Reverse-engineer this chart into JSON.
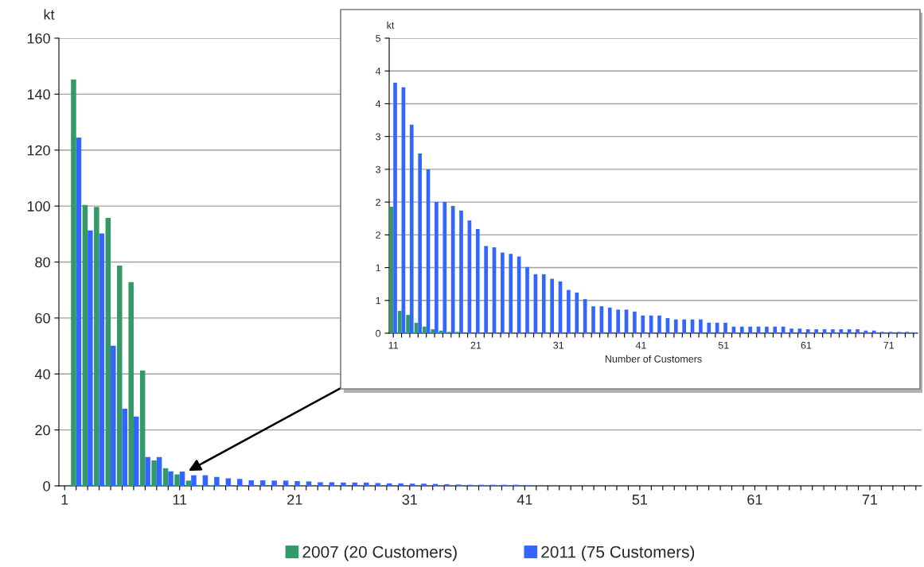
{
  "chart_data": [
    {
      "type": "bar",
      "ylabel": "kt",
      "categories": [
        "1",
        null,
        null,
        null,
        null,
        null,
        null,
        null,
        null,
        null,
        "11",
        null,
        null,
        null,
        null,
        null,
        null,
        null,
        null,
        null,
        "21",
        null,
        null,
        null,
        null,
        null,
        null,
        null,
        null,
        null,
        "31",
        null,
        null,
        null,
        null,
        null,
        null,
        null,
        null,
        null,
        "41",
        null,
        null,
        null,
        null,
        null,
        null,
        null,
        null,
        null,
        "51",
        null,
        null,
        null,
        null,
        null,
        null,
        null,
        null,
        null,
        "61",
        null,
        null,
        null,
        null,
        null,
        null,
        null,
        null,
        null,
        "71",
        null,
        null,
        null,
        null
      ],
      "series": [
        {
          "name": "2007 (20 Customers)",
          "color": "#339966",
          "values": [
            null,
            145.2,
            100.4,
            99.7,
            95.8,
            78.7,
            72.8,
            41.2,
            9.1,
            6.3,
            4.1,
            1.9,
            0.3,
            0.3,
            0.2,
            null,
            null,
            null,
            null,
            null,
            null,
            null,
            null,
            null,
            null,
            null,
            null,
            null,
            null,
            null,
            null,
            null,
            null,
            null,
            null,
            null,
            null,
            null,
            null,
            null,
            null,
            null,
            null,
            null,
            null,
            null,
            null,
            null,
            null,
            null,
            null,
            null,
            null,
            null,
            null,
            null,
            null,
            null,
            null,
            null,
            null,
            null,
            null,
            null,
            null,
            null,
            null,
            null,
            null,
            null,
            null,
            null,
            null,
            null,
            null
          ]
        },
        {
          "name": "2011 (75 Customers)",
          "color": "#3366ff",
          "values": [
            null,
            124.5,
            91.3,
            90.2,
            50.1,
            27.6,
            24.8,
            10.3,
            10.3,
            5.2,
            5.1,
            3.8,
            3.8,
            3.2,
            2.7,
            2.5,
            2.0,
            2.0,
            1.9,
            1.9,
            1.7,
            1.6,
            1.3,
            1.3,
            1.2,
            1.2,
            1.2,
            1.0,
            0.9,
            0.9,
            0.8,
            0.8,
            0.7,
            0.6,
            0.5,
            0.4,
            0.4,
            0.4,
            0.4,
            0.4,
            0.3,
            null,
            null,
            null,
            null,
            null,
            null,
            null,
            null,
            null,
            null,
            null,
            null,
            null,
            null,
            null,
            null,
            null,
            null,
            null,
            null,
            null,
            null,
            null,
            null,
            null,
            null,
            null,
            null,
            null,
            null,
            null,
            null,
            null,
            null
          ]
        }
      ],
      "ylim": [
        0,
        160
      ],
      "yticks": [
        0,
        20,
        40,
        60,
        80,
        100,
        120,
        140,
        160
      ],
      "grid": "y",
      "legend": "bottom"
    },
    {
      "type": "bar",
      "ylabel": "kt",
      "xlabel": "Number of Customers",
      "categories": [
        "11",
        null,
        null,
        null,
        null,
        null,
        null,
        null,
        null,
        null,
        "21",
        null,
        null,
        null,
        null,
        null,
        null,
        null,
        null,
        null,
        "31",
        null,
        null,
        null,
        null,
        null,
        null,
        null,
        null,
        null,
        "41",
        null,
        null,
        null,
        null,
        null,
        null,
        null,
        null,
        null,
        "51",
        null,
        null,
        null,
        null,
        null,
        null,
        null,
        null,
        null,
        "61",
        null,
        null,
        null,
        null,
        null,
        null,
        null,
        null,
        null,
        "71",
        null,
        null,
        null
      ],
      "series": [
        {
          "color": "#339966",
          "values": [
            1.93,
            0.34,
            0.28,
            0.16,
            0.1,
            0.06,
            0.04,
            0.02,
            0.02,
            null,
            null,
            null,
            null,
            null,
            null,
            null,
            null,
            null,
            null,
            null,
            null,
            null,
            null,
            null,
            null,
            null,
            null,
            null,
            null,
            null,
            null,
            null,
            null,
            null,
            null,
            null,
            null,
            null,
            null,
            null,
            null,
            null,
            null,
            null,
            null,
            null,
            null,
            null,
            null,
            null,
            null,
            null,
            null,
            null,
            null,
            null,
            null,
            null,
            null,
            null,
            null,
            null,
            null,
            null
          ]
        },
        {
          "color": "#3366ff",
          "values": [
            3.82,
            3.75,
            3.18,
            2.74,
            2.5,
            2.0,
            2.0,
            1.94,
            1.87,
            1.72,
            1.59,
            1.33,
            1.31,
            1.23,
            1.21,
            1.17,
            1.01,
            0.9,
            0.9,
            0.83,
            0.79,
            0.66,
            0.62,
            0.52,
            0.41,
            0.41,
            0.39,
            0.36,
            0.36,
            0.33,
            0.27,
            0.27,
            0.27,
            0.23,
            0.21,
            0.21,
            0.21,
            0.21,
            0.16,
            0.16,
            0.16,
            0.1,
            0.1,
            0.1,
            0.1,
            0.1,
            0.1,
            0.1,
            0.07,
            0.07,
            0.06,
            0.06,
            0.06,
            0.06,
            0.06,
            0.06,
            0.06,
            0.04,
            0.04,
            0.02,
            0.02,
            0.02,
            0.02,
            0.01
          ]
        }
      ],
      "ylim": [
        0,
        4.5
      ],
      "yticks": [
        0,
        {
          "value": 0.5,
          "label": "1"
        },
        1,
        {
          "value": 1.5,
          "label": "2"
        },
        2,
        {
          "value": 2.5,
          "label": "3"
        },
        3,
        {
          "value": 3.5,
          "label": "4"
        },
        4,
        {
          "value": 4.5,
          "label": "5"
        }
      ],
      "grid": "y"
    }
  ]
}
